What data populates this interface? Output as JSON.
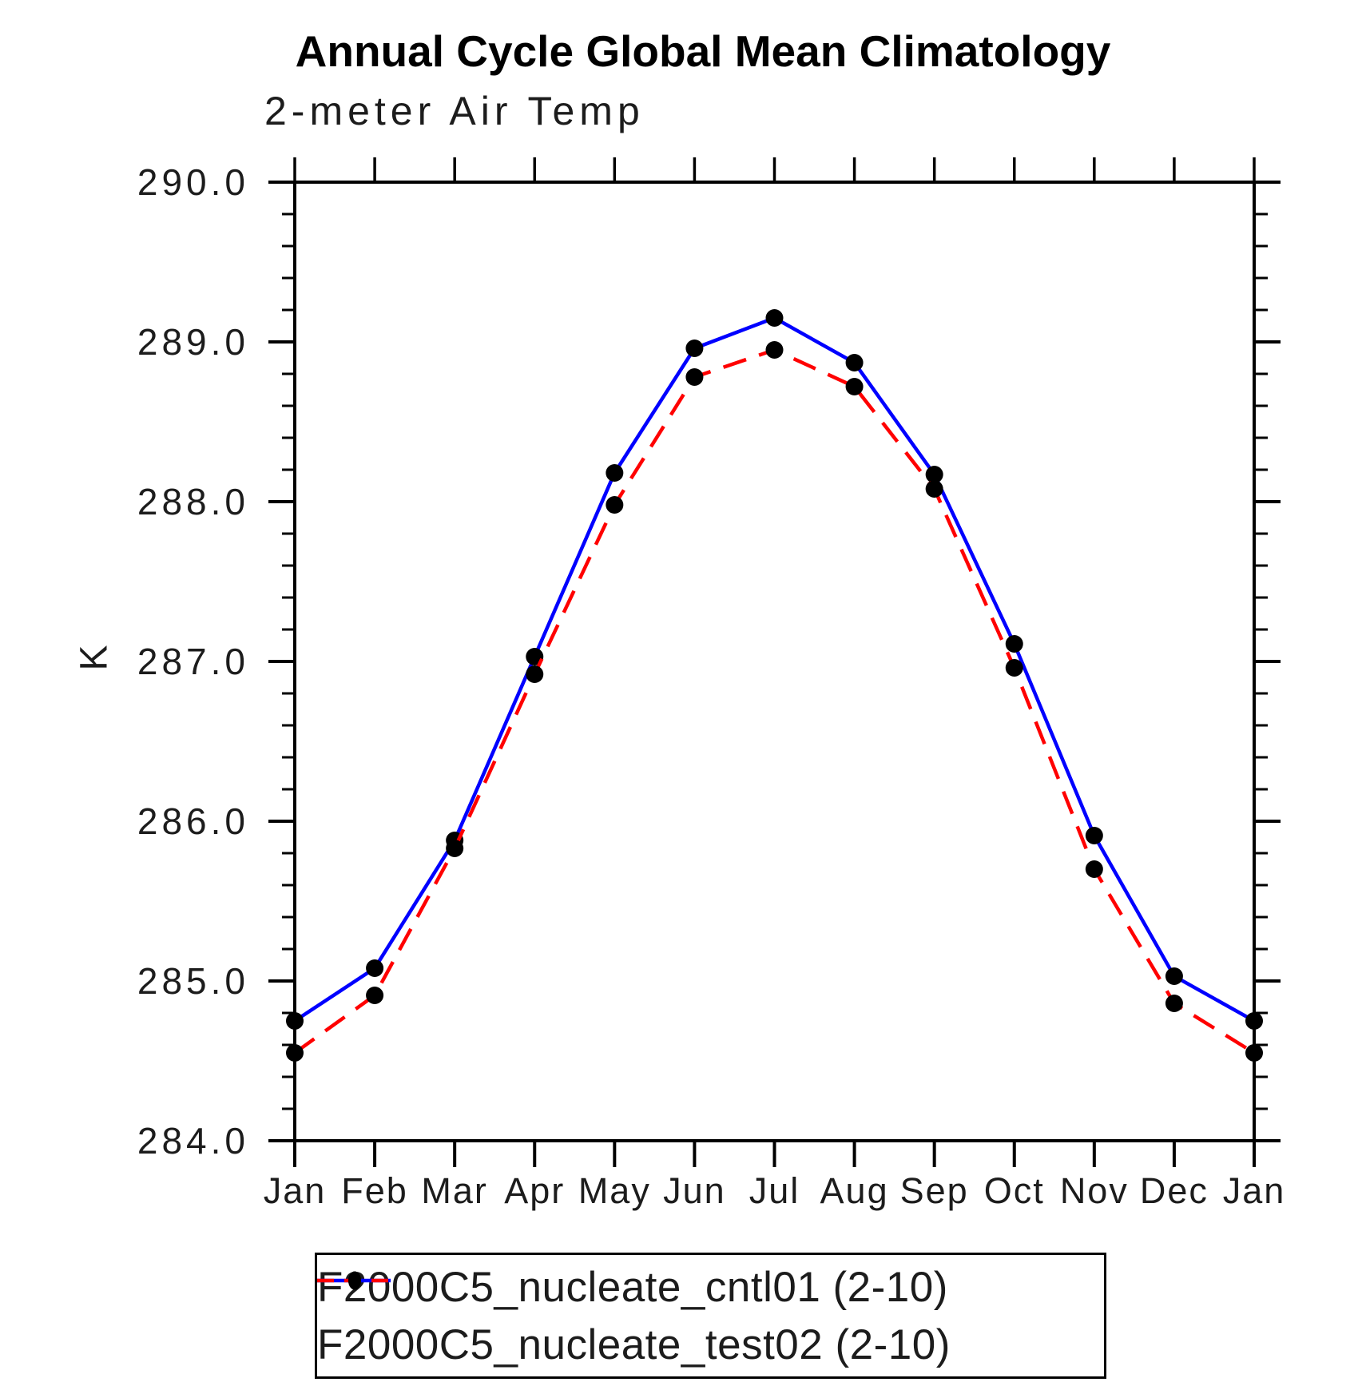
{
  "chart_data": {
    "type": "line",
    "title": "Annual Cycle Global Mean Climatology",
    "subtitle": "2-meter Air Temp",
    "ylabel": "K",
    "categories": [
      "Jan",
      "Feb",
      "Mar",
      "Apr",
      "May",
      "Jun",
      "Jul",
      "Aug",
      "Sep",
      "Oct",
      "Nov",
      "Dec",
      "Jan"
    ],
    "ylim": [
      284.0,
      290.0
    ],
    "ytick_step": 1.0,
    "minor_tick_step": 0.2,
    "ytick_labels": [
      "290.0",
      "289.0",
      "288.0",
      "287.0",
      "286.0",
      "285.0",
      "284.0"
    ],
    "grid": false,
    "legend_position": "bottom",
    "background_color": "#ffffff",
    "axis_color": "#000000",
    "marker_color": "#000000",
    "series": [
      {
        "name": "F2000C5_nucleate_cntl01 (2-10)",
        "color": "#0000ff",
        "line_style": "solid",
        "marker": "filled-circle",
        "values": [
          284.75,
          285.08,
          285.88,
          287.03,
          288.18,
          288.96,
          289.15,
          288.87,
          288.17,
          287.11,
          285.91,
          285.03,
          284.75
        ]
      },
      {
        "name": "F2000C5_nucleate_test02 (2-10)",
        "color": "#ff0000",
        "line_style": "dashed",
        "marker": "filled-circle",
        "values": [
          284.55,
          284.91,
          285.83,
          286.92,
          287.98,
          288.78,
          288.95,
          288.72,
          288.08,
          286.96,
          285.7,
          284.86,
          284.55
        ]
      }
    ]
  }
}
